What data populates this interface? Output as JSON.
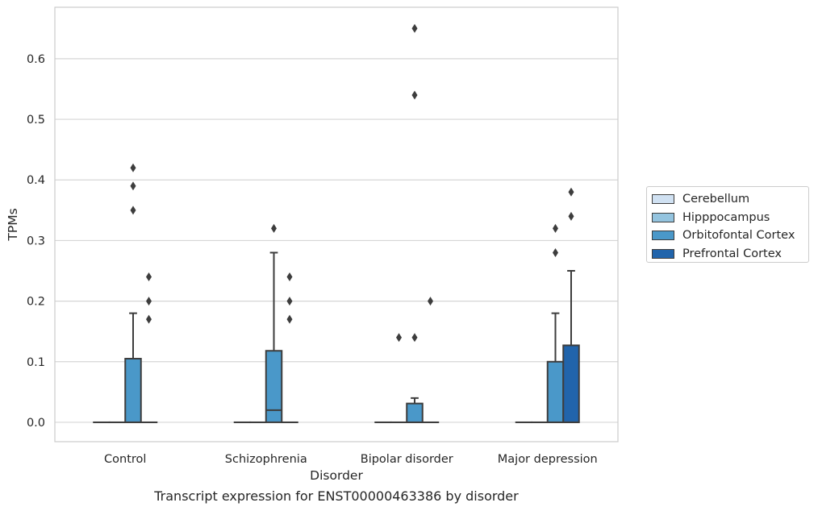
{
  "chart_data": {
    "type": "box",
    "xlabel": "Disorder",
    "ylabel": "TPMs",
    "ylim": [
      -0.032,
      0.685
    ],
    "yticks": [
      0.0,
      0.1,
      0.2,
      0.3,
      0.4,
      0.5,
      0.6
    ],
    "ytick_labels": [
      "0.0",
      "0.1",
      "0.2",
      "0.3",
      "0.4",
      "0.5",
      "0.6"
    ],
    "categories": [
      "Control",
      "Schizophrenia",
      "Bipolar disorder",
      "Major depression"
    ],
    "grid": "horizontal",
    "legend_placement": "right",
    "series": [
      {
        "name": "Cerebellum",
        "color": "#d0e1f2",
        "boxes": [
          {
            "q1": 0,
            "median": 0,
            "q3": 0,
            "whislo": 0,
            "whishi": 0,
            "fliers": []
          },
          {
            "q1": 0,
            "median": 0,
            "q3": 0,
            "whislo": 0,
            "whishi": 0,
            "fliers": []
          },
          {
            "q1": 0,
            "median": 0,
            "q3": 0,
            "whislo": 0,
            "whishi": 0,
            "fliers": []
          },
          {
            "q1": 0,
            "median": 0,
            "q3": 0,
            "whislo": 0,
            "whishi": 0,
            "fliers": []
          }
        ]
      },
      {
        "name": "Hipppocampus",
        "color": "#94c4df",
        "boxes": [
          {
            "q1": 0,
            "median": 0,
            "q3": 0,
            "whislo": 0,
            "whishi": 0,
            "fliers": []
          },
          {
            "q1": 0,
            "median": 0,
            "q3": 0,
            "whislo": 0,
            "whishi": 0,
            "fliers": []
          },
          {
            "q1": 0,
            "median": 0,
            "q3": 0,
            "whislo": 0,
            "whishi": 0,
            "fliers": [
              0.14
            ]
          },
          {
            "q1": 0,
            "median": 0,
            "q3": 0,
            "whislo": 0,
            "whishi": 0,
            "fliers": []
          }
        ]
      },
      {
        "name": "Orbitofontal Cortex",
        "color": "#4a98c9",
        "boxes": [
          {
            "q1": 0,
            "median": 0,
            "q3": 0.105,
            "whislo": 0,
            "whishi": 0.18,
            "fliers": [
              0.35,
              0.39,
              0.42
            ]
          },
          {
            "q1": 0,
            "median": 0.02,
            "q3": 0.118,
            "whislo": 0,
            "whishi": 0.28,
            "fliers": [
              0.32
            ]
          },
          {
            "q1": 0,
            "median": 0,
            "q3": 0.031,
            "whislo": 0,
            "whishi": 0.04,
            "fliers": [
              0.14,
              0.54,
              0.65
            ]
          },
          {
            "q1": 0,
            "median": 0,
            "q3": 0.1,
            "whislo": 0,
            "whishi": 0.18,
            "fliers": [
              0.28,
              0.32
            ]
          }
        ]
      },
      {
        "name": "Prefrontal Cortex",
        "color": "#2164ab",
        "boxes": [
          {
            "q1": 0,
            "median": 0,
            "q3": 0,
            "whislo": 0,
            "whishi": 0,
            "fliers": [
              0.17,
              0.2,
              0.24
            ]
          },
          {
            "q1": 0,
            "median": 0,
            "q3": 0,
            "whislo": 0,
            "whishi": 0,
            "fliers": [
              0.17,
              0.2,
              0.24
            ]
          },
          {
            "q1": 0,
            "median": 0,
            "q3": 0,
            "whislo": 0,
            "whishi": 0,
            "fliers": [
              0.2
            ]
          },
          {
            "q1": 0,
            "median": 0,
            "q3": 0.127,
            "whislo": 0,
            "whishi": 0.25,
            "fliers": [
              0.34,
              0.38
            ]
          }
        ]
      }
    ]
  },
  "legend": {
    "items": [
      "Cerebellum",
      "Hipppocampus",
      "Orbitofontal Cortex",
      "Prefrontal Cortex"
    ]
  },
  "caption": "Transcript expression for ENST00000463386 by disorder"
}
